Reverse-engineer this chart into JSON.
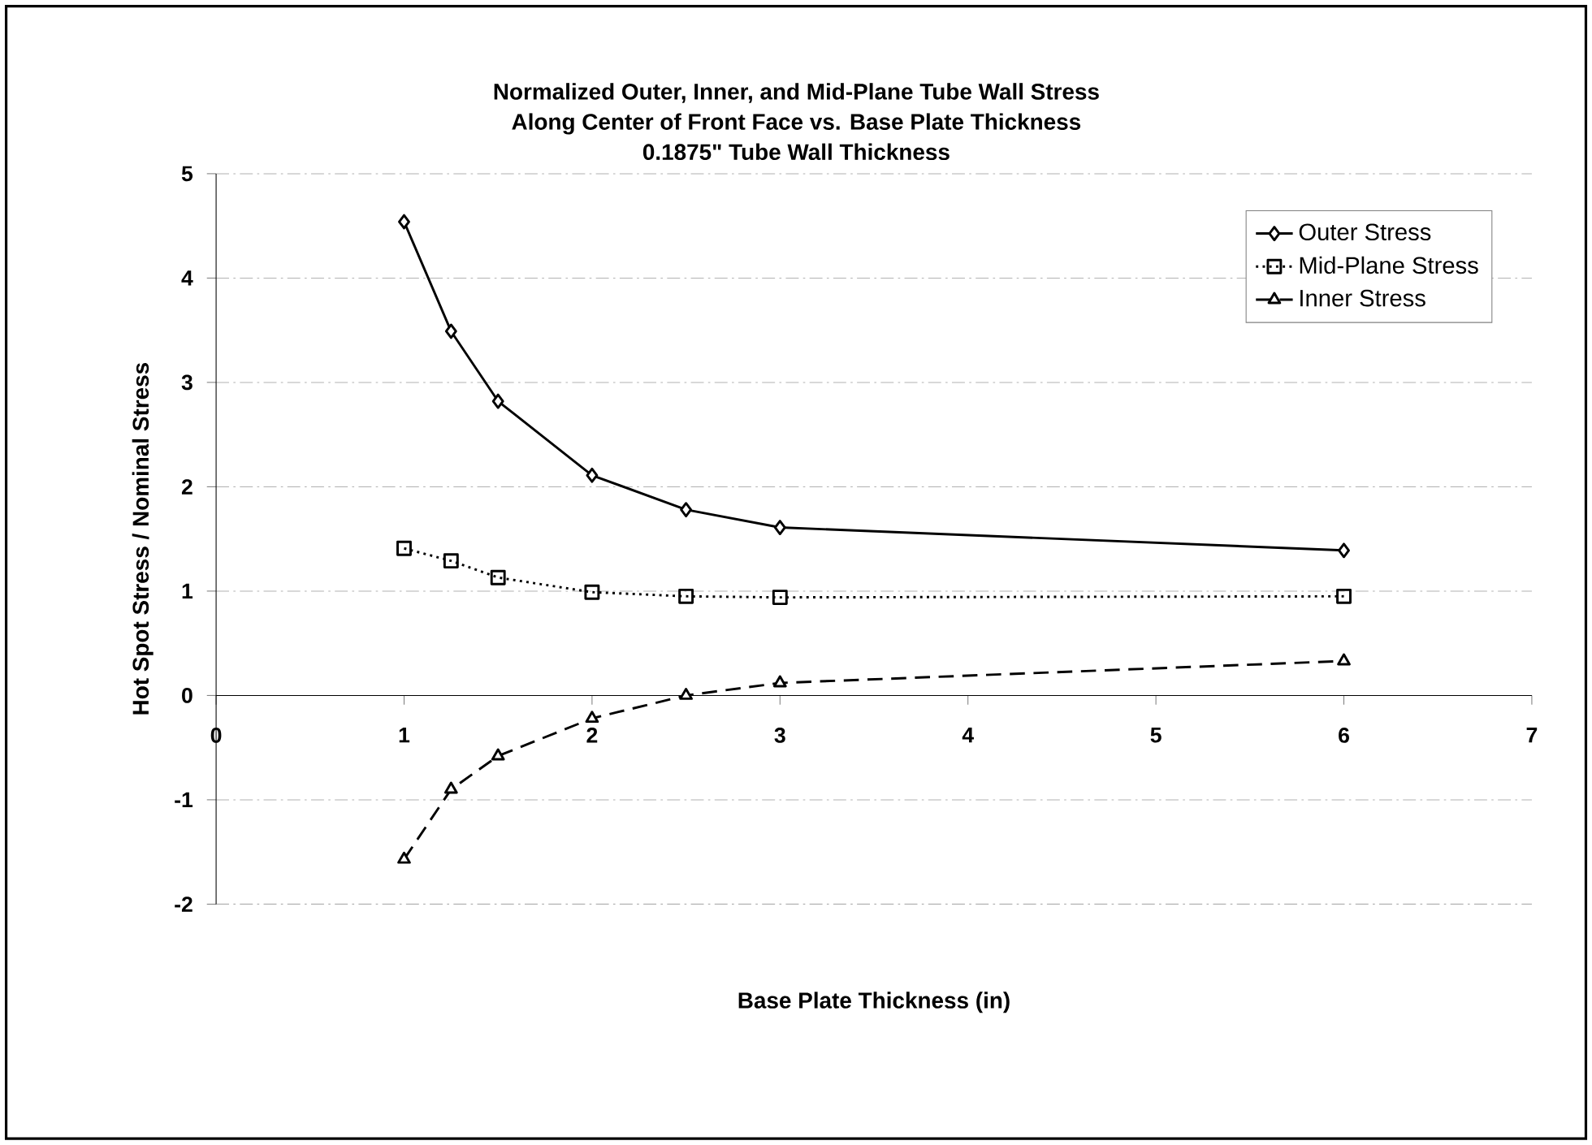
{
  "chart_data": {
    "type": "line",
    "title": "Normalized Outer, Inner, and Mid-Plane Tube Wall Stress\nAlong Center of Front Face vs. Base Plate Thickness\n0.1875\" Tube Wall Thickness",
    "xlabel": "Base Plate Thickness (in)",
    "ylabel": "Hot Spot Stress / Nominal Stress",
    "x": [
      1,
      1.25,
      1.5,
      2,
      2.5,
      3,
      6
    ],
    "series": [
      {
        "name": "Outer Stress",
        "color": "#000000",
        "marker": "diamond",
        "line_style": "solid",
        "values": [
          4.54,
          3.49,
          2.82,
          2.11,
          1.78,
          1.61,
          1.39
        ]
      },
      {
        "name": "Mid-Plane Stress",
        "color": "#000000",
        "marker": "square",
        "line_style": "dotted",
        "values": [
          1.41,
          1.29,
          1.13,
          0.99,
          0.95,
          0.94,
          0.95
        ]
      },
      {
        "name": "Inner Stress",
        "color": "#000000",
        "marker": "triangle",
        "line_style": "dashed",
        "values": [
          -1.57,
          -0.9,
          -0.58,
          -0.22,
          0.0,
          0.12,
          0.33
        ]
      }
    ],
    "xlim": [
      0,
      7
    ],
    "xticks": [
      0,
      1,
      2,
      3,
      4,
      5,
      6,
      7
    ],
    "ylim": [
      -2,
      5
    ],
    "yticks": [
      -2,
      -1,
      0,
      1,
      2,
      3,
      4,
      5
    ],
    "grid": "y",
    "legend": "top right"
  }
}
